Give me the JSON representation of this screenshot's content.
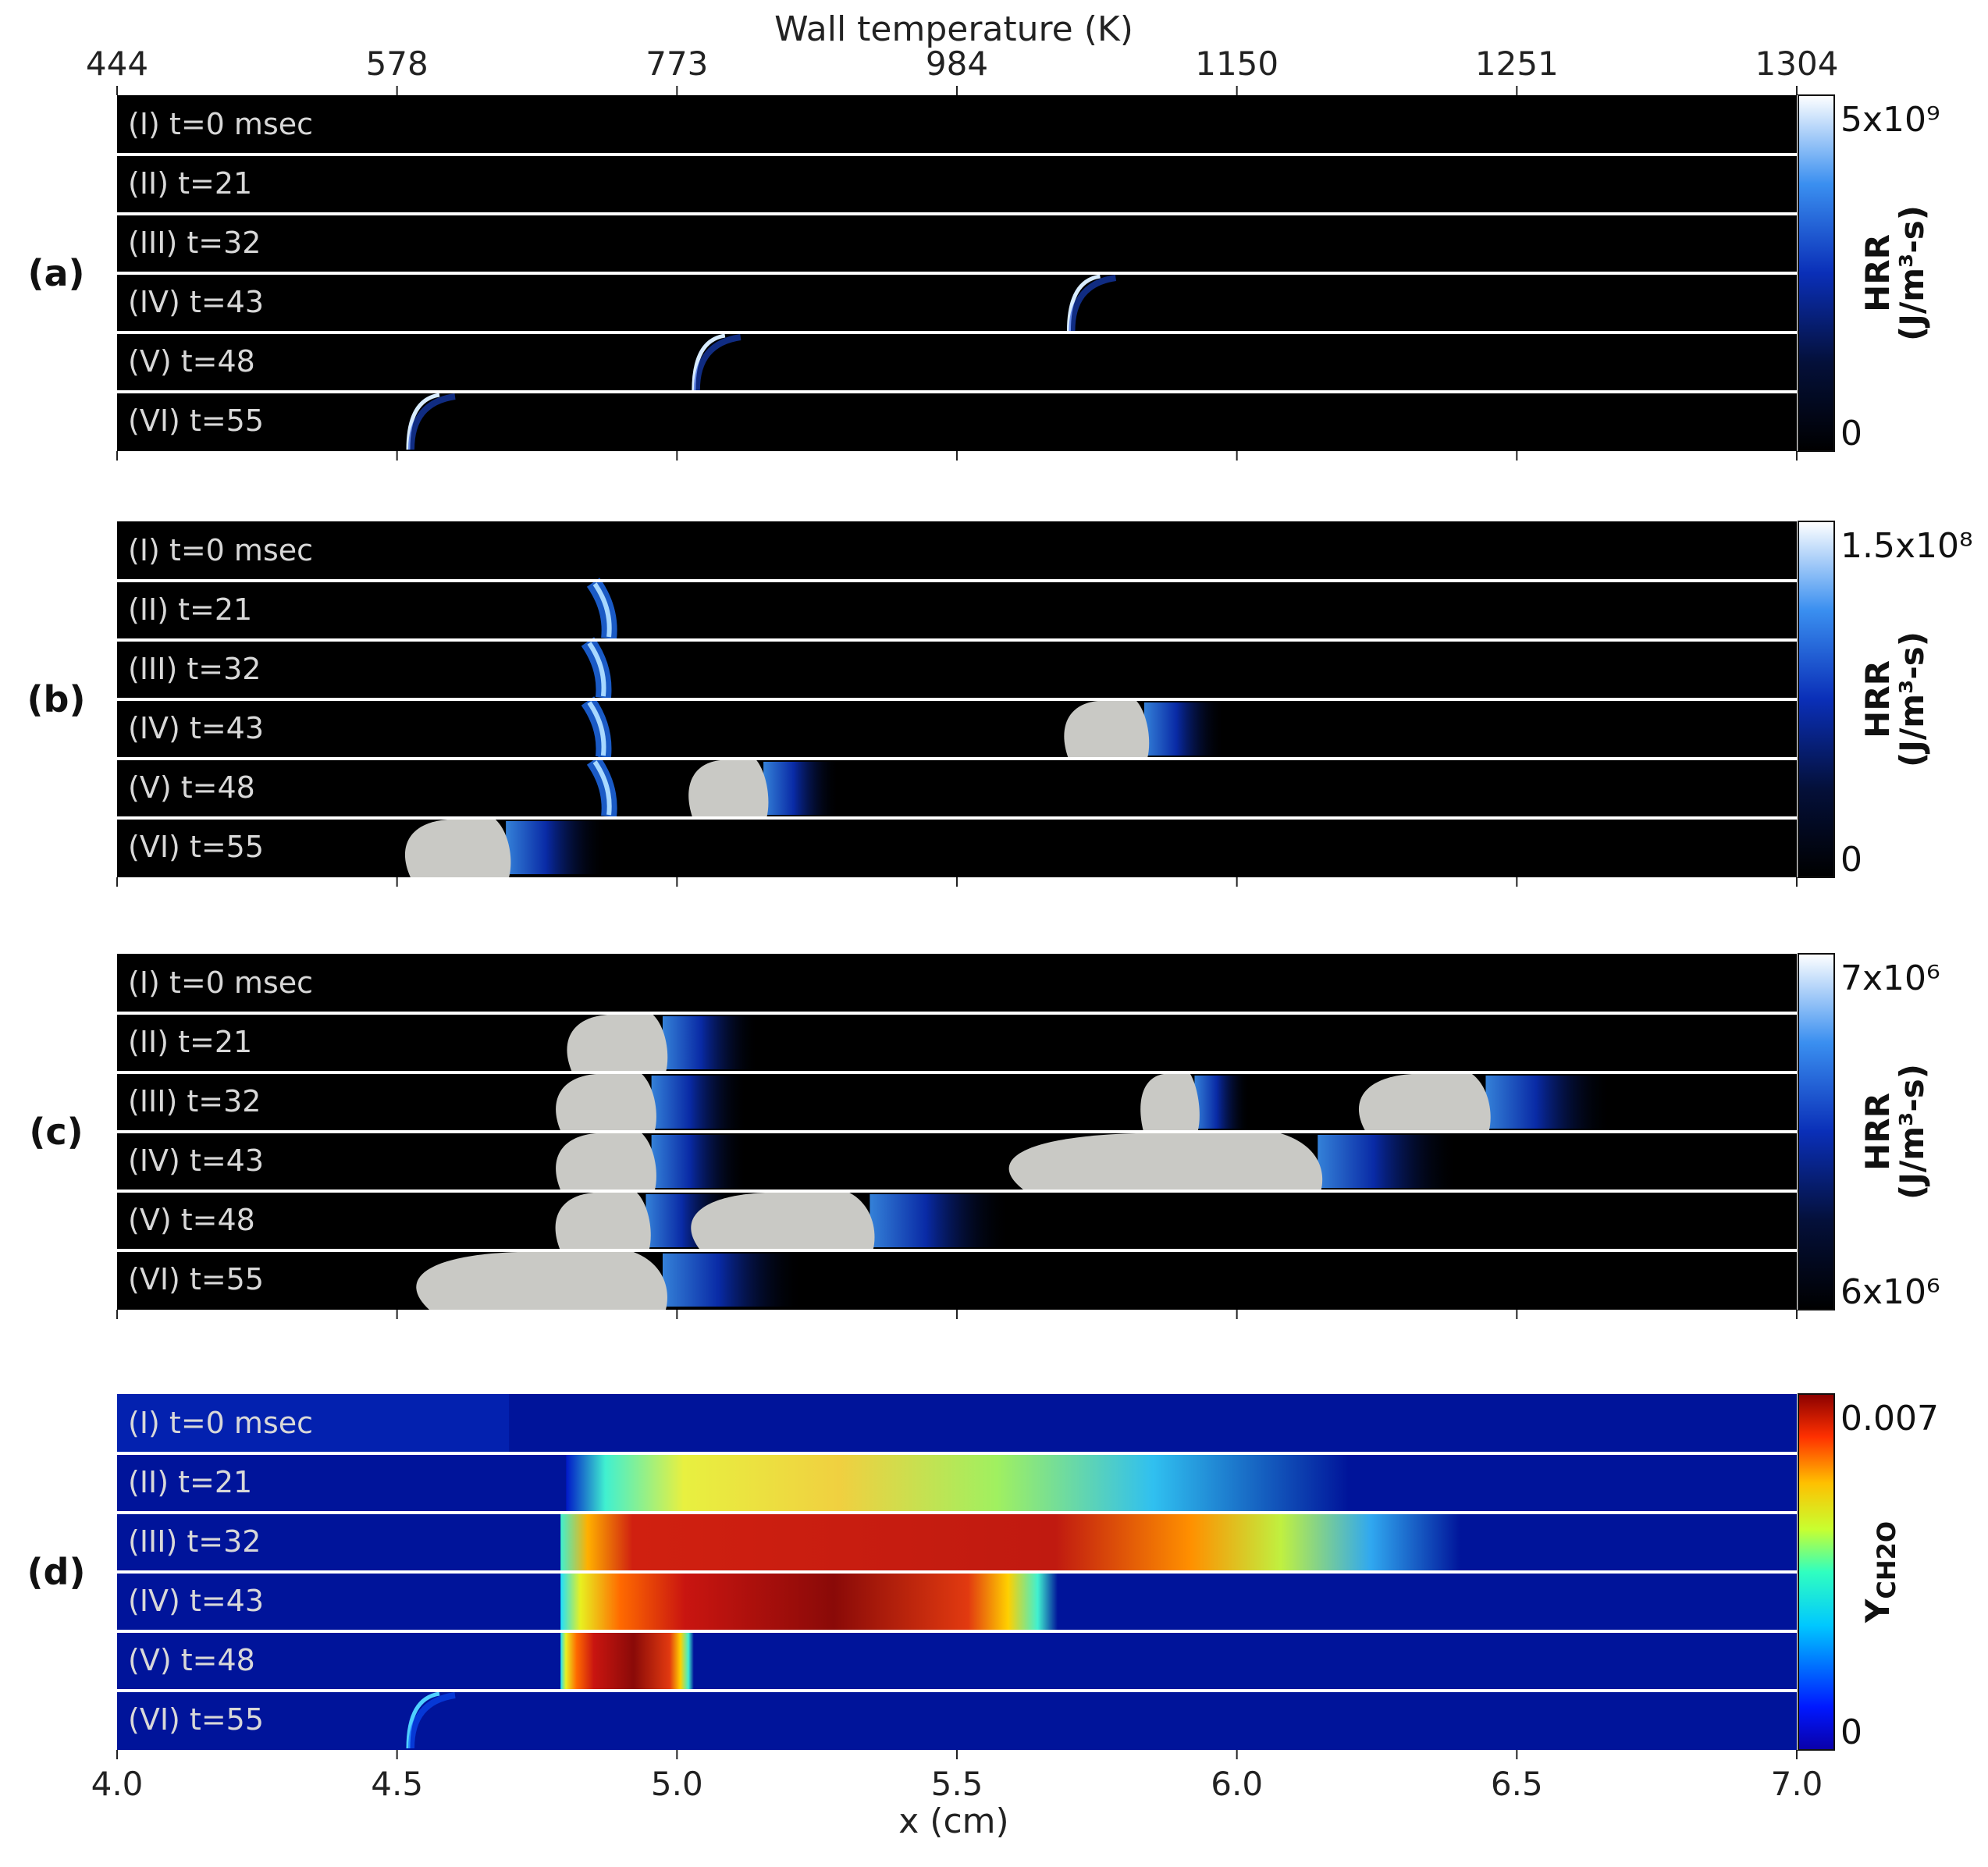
{
  "chart_data": {
    "type": "heatmap",
    "top_axis": {
      "title": "Wall temperature (K)",
      "tick_labels": [
        "444",
        "578",
        "773",
        "984",
        "1150",
        "1251",
        "1304"
      ]
    },
    "x_axis": {
      "title": "x (cm)",
      "ticks": [
        4.0,
        4.5,
        5.0,
        5.5,
        6.0,
        6.5,
        7.0
      ],
      "tick_labels": [
        "4.0",
        "4.5",
        "5.0",
        "5.5",
        "6.0",
        "6.5",
        "7.0"
      ],
      "range": [
        4.0,
        7.0
      ]
    },
    "row_labels": [
      "(I)  t=0 msec",
      "(II)  t=21",
      "(III)  t=32",
      "(IV)  t=43",
      "(V)  t=48",
      "(VI)  t=55"
    ],
    "panels": [
      {
        "label": "(a)",
        "quantity": "HRR",
        "colorbar": {
          "colormap": "black-blue-white",
          "max_label": "5x10⁹",
          "min_label": "0",
          "title": "HRR",
          "units": "(J/m³-s)"
        },
        "features": [
          {
            "row": 4,
            "type": "thin-front",
            "x": 5.7
          },
          {
            "row": 5,
            "type": "thin-front",
            "x": 5.03
          },
          {
            "row": 6,
            "type": "thin-front",
            "x": 4.52
          }
        ]
      },
      {
        "label": "(b)",
        "quantity": "HRR",
        "colorbar": {
          "colormap": "black-blue-white",
          "max_label": "1.5x10⁸",
          "min_label": "0",
          "title": "HRR",
          "units": "(J/m³-s)"
        },
        "features": [
          {
            "row": 2,
            "type": "blue-band",
            "x": 4.87
          },
          {
            "row": 3,
            "type": "blue-band",
            "x": 4.86
          },
          {
            "row": 4,
            "type": "blue-band",
            "x": 4.86
          },
          {
            "row": 4,
            "type": "saturated-blob",
            "x_start": 5.68,
            "x_end": 5.84
          },
          {
            "row": 5,
            "type": "blue-band",
            "x": 4.87
          },
          {
            "row": 5,
            "type": "saturated-blob",
            "x_start": 5.01,
            "x_end": 5.16
          },
          {
            "row": 6,
            "type": "saturated-blob",
            "x_start": 4.5,
            "x_end": 4.7
          }
        ]
      },
      {
        "label": "(c)",
        "quantity": "HRR",
        "colorbar": {
          "colormap": "black-blue-white",
          "max_label": "7x10⁶",
          "min_label": "6x10⁶",
          "title": "HRR",
          "units": "(J/m³-s)"
        },
        "features": [
          {
            "row": 2,
            "type": "saturated-band",
            "x_start": 4.79,
            "x_end": 4.98
          },
          {
            "row": 3,
            "type": "saturated-band",
            "x_start": 4.77,
            "x_end": 4.96
          },
          {
            "row": 3,
            "type": "saturated-blob",
            "x_start": 5.82,
            "x_end": 5.93
          },
          {
            "row": 3,
            "type": "saturated-blob",
            "x_start": 6.2,
            "x_end": 6.45
          },
          {
            "row": 4,
            "type": "saturated-band",
            "x_start": 4.77,
            "x_end": 4.96
          },
          {
            "row": 4,
            "type": "saturated-blob",
            "x_start": 5.55,
            "x_end": 6.15
          },
          {
            "row": 5,
            "type": "saturated-band",
            "x_start": 4.77,
            "x_end": 4.95
          },
          {
            "row": 5,
            "type": "saturated-blob",
            "x_start": 5.0,
            "x_end": 5.35
          },
          {
            "row": 6,
            "type": "saturated-blob",
            "x_start": 4.5,
            "x_end": 4.98
          }
        ]
      },
      {
        "label": "(d)",
        "quantity": "Y_CH2O",
        "colorbar": {
          "colormap": "jet",
          "max_label": "0.007",
          "min_label": "0",
          "title": "Y",
          "title_sub": "CH2O"
        },
        "features": [
          {
            "row": 1,
            "type": "low-background",
            "x_start": 4.0,
            "x_end": 4.7
          },
          {
            "row": 2,
            "type": "gradient",
            "x_start": 4.83,
            "x_end": 6.2
          },
          {
            "row": 3,
            "type": "gradient",
            "x_start": 4.82,
            "x_end": 6.4
          },
          {
            "row": 4,
            "type": "gradient",
            "x_start": 4.82,
            "x_end": 5.68
          },
          {
            "row": 5,
            "type": "gradient",
            "x_start": 4.82,
            "x_end": 5.03
          },
          {
            "row": 6,
            "type": "thin-front",
            "x": 4.52
          }
        ]
      }
    ]
  }
}
